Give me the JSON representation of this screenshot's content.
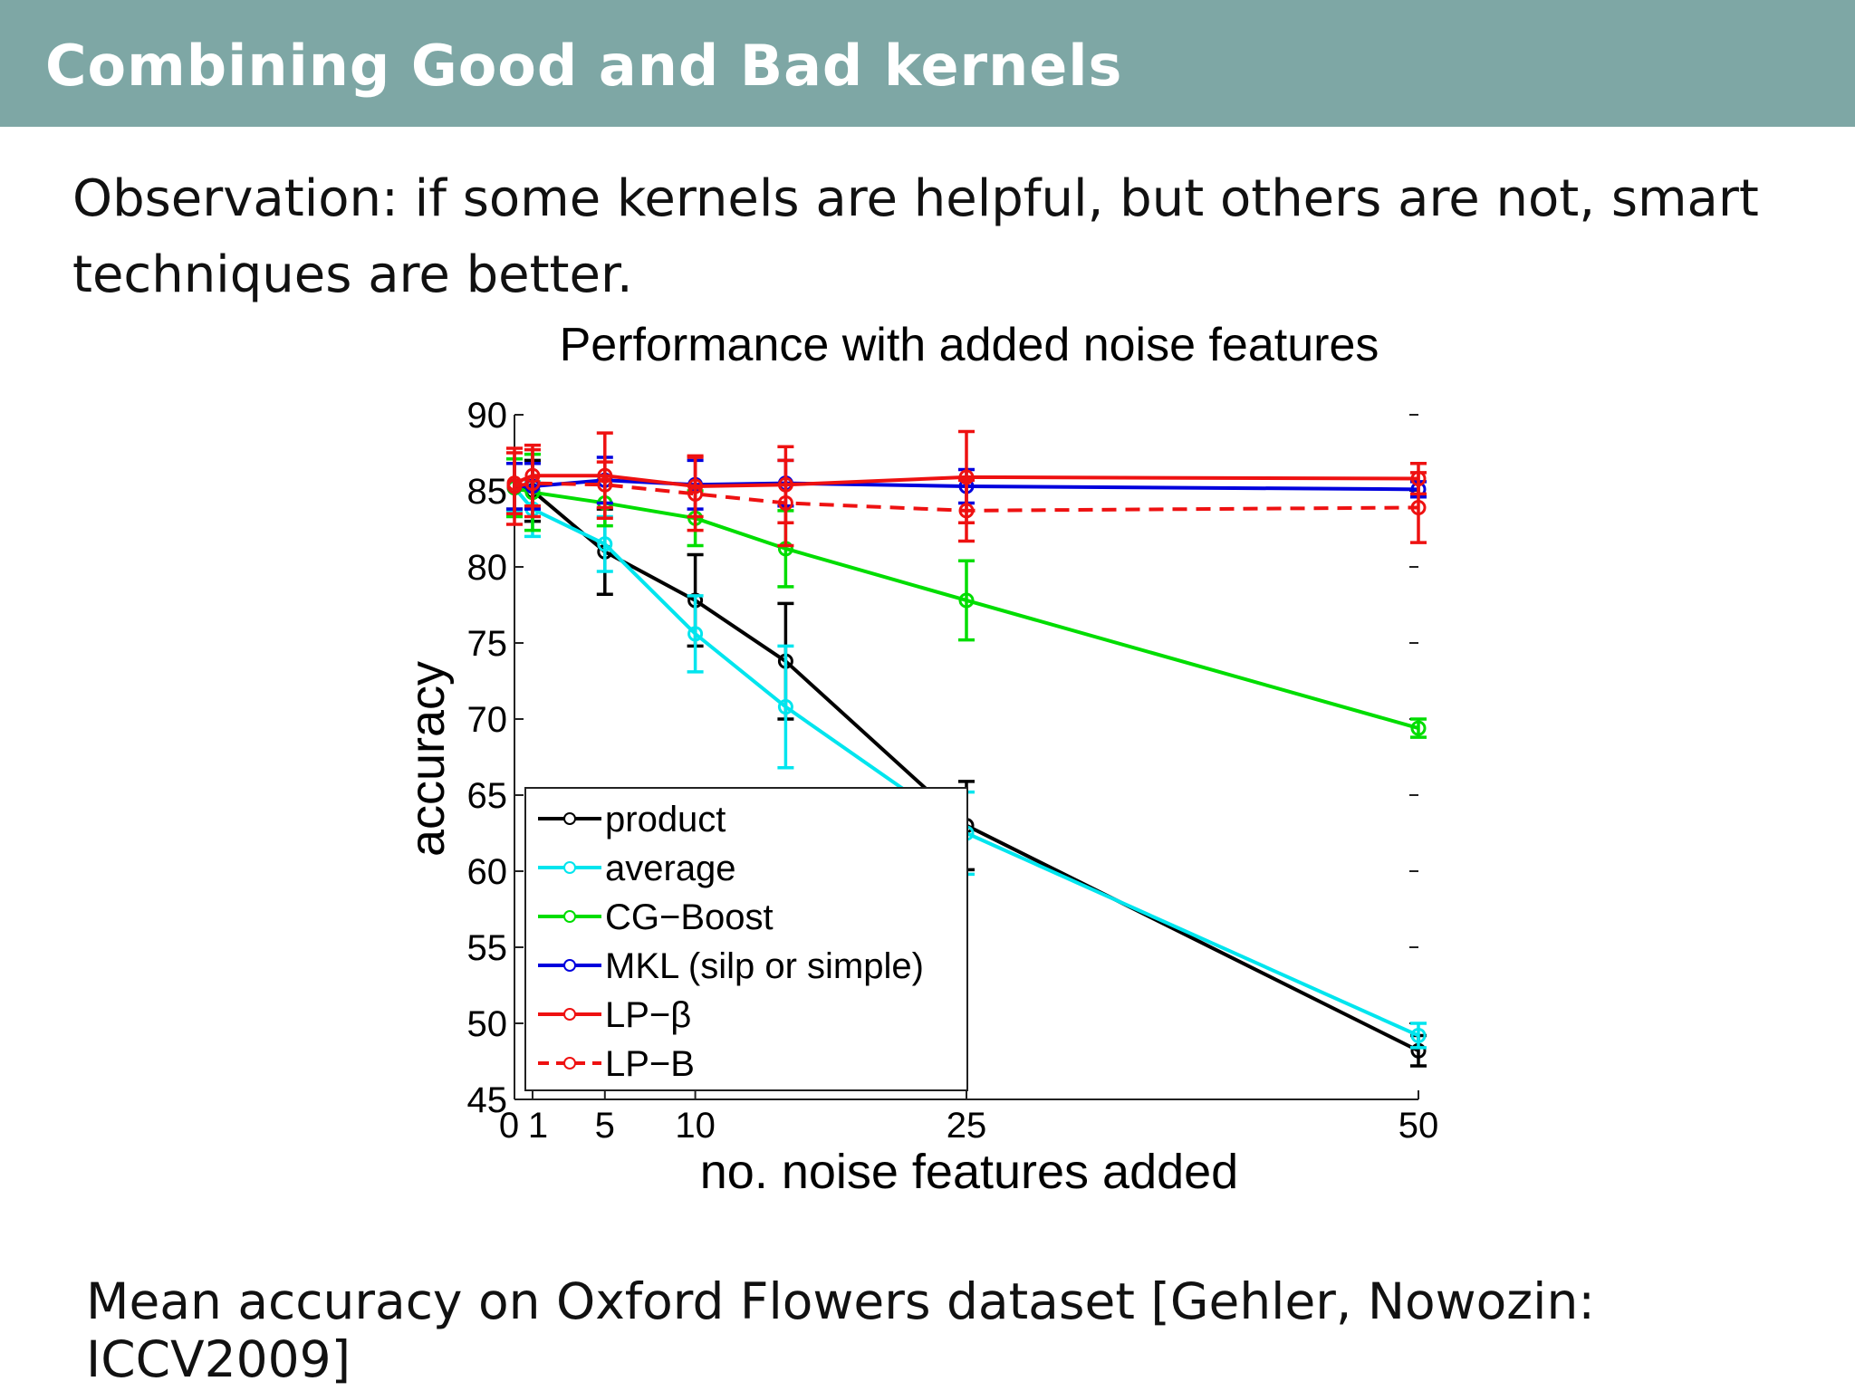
{
  "slide": {
    "title": "Combining Good and Bad kernels",
    "observation": "Observation: if some kernels are helpful, but others are not, smart techniques are better.",
    "caption": "Mean accuracy on Oxford Flowers dataset [Gehler, Nowozin: ICCV2009]"
  },
  "chart_data": {
    "type": "line",
    "title": "Performance with added noise features",
    "xlabel": "no. noise features added",
    "ylabel": "accuracy",
    "xlim": [
      0,
      50
    ],
    "ylim": [
      45,
      90
    ],
    "x_ticks": [
      0,
      1,
      5,
      10,
      25,
      50
    ],
    "x_tick_labels": [
      "0",
      "1",
      "5",
      "10",
      "25",
      "50"
    ],
    "y_ticks": [
      45,
      50,
      55,
      60,
      65,
      70,
      75,
      80,
      85,
      90
    ],
    "y_tick_labels": [
      "45",
      "50",
      "55",
      "60",
      "65",
      "70",
      "75",
      "80",
      "85",
      "90"
    ],
    "grid": false,
    "legend_position": "bottom-left",
    "series": [
      {
        "name": "product",
        "color": "#000000",
        "dashed": false,
        "x": [
          0,
          1,
          5,
          10,
          15,
          25,
          50
        ],
        "y": [
          85.3,
          85.0,
          81.0,
          77.8,
          73.8,
          63.0,
          48.2
        ],
        "err": [
          1.5,
          2.0,
          2.8,
          3.0,
          3.8,
          2.9,
          1.0
        ]
      },
      {
        "name": "average",
        "color": "#00e5ee",
        "dashed": false,
        "x": [
          0,
          1,
          5,
          10,
          15,
          25,
          50
        ],
        "y": [
          85.2,
          83.8,
          81.5,
          75.6,
          70.8,
          62.5,
          49.2
        ],
        "err": [
          1.6,
          1.8,
          1.8,
          2.5,
          4.0,
          2.7,
          0.8
        ]
      },
      {
        "name": "CG−Boost",
        "color": "#00dd00",
        "dashed": false,
        "x": [
          0,
          1,
          5,
          10,
          15,
          25,
          50
        ],
        "y": [
          85.2,
          84.9,
          84.2,
          83.2,
          81.2,
          77.8,
          69.4
        ],
        "err": [
          1.9,
          2.5,
          1.5,
          1.8,
          2.5,
          2.6,
          0.6
        ]
      },
      {
        "name": "MKL (silp or simple)",
        "color": "#0000dd",
        "dashed": false,
        "x": [
          0,
          1,
          5,
          10,
          15,
          25,
          50
        ],
        "y": [
          85.3,
          85.3,
          85.7,
          85.4,
          85.5,
          85.3,
          85.1
        ],
        "err": [
          1.5,
          1.5,
          1.5,
          1.6,
          1.5,
          1.1,
          0.5
        ]
      },
      {
        "name": "LP−β",
        "color": "#ee1111",
        "dashed": false,
        "x": [
          0,
          1,
          5,
          10,
          15,
          25,
          50
        ],
        "y": [
          85.5,
          86.0,
          86.0,
          85.3,
          85.4,
          85.9,
          85.8
        ],
        "err": [
          2.0,
          2.0,
          2.8,
          2.0,
          2.5,
          3.0,
          1.0
        ]
      },
      {
        "name": "LP−B",
        "color": "#ee1111",
        "dashed": true,
        "x": [
          0,
          1,
          5,
          10,
          15,
          25,
          50
        ],
        "y": [
          85.3,
          85.5,
          85.4,
          84.8,
          84.2,
          83.7,
          83.9
        ],
        "err": [
          2.5,
          2.2,
          1.5,
          2.4,
          2.8,
          2.0,
          2.3
        ]
      }
    ]
  }
}
